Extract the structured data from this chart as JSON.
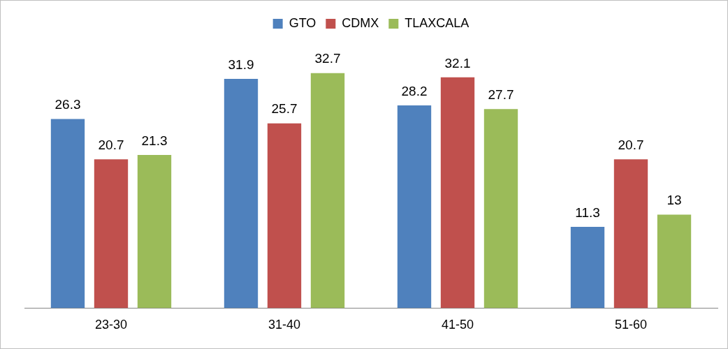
{
  "chart_data": {
    "type": "bar",
    "categories": [
      "23-30",
      "31-40",
      "41-50",
      "51-60"
    ],
    "series": [
      {
        "name": "GTO",
        "color": "#4f81bd",
        "values": [
          26.3,
          31.9,
          28.2,
          11.3
        ]
      },
      {
        "name": "CDMX",
        "color": "#c0504d",
        "values": [
          20.7,
          25.7,
          32.1,
          20.7
        ]
      },
      {
        "name": "TLAXCALA",
        "color": "#9bbb59",
        "values": [
          21.3,
          32.7,
          27.7,
          13
        ]
      }
    ],
    "data_labels": true,
    "grid": false,
    "legend": "top"
  }
}
